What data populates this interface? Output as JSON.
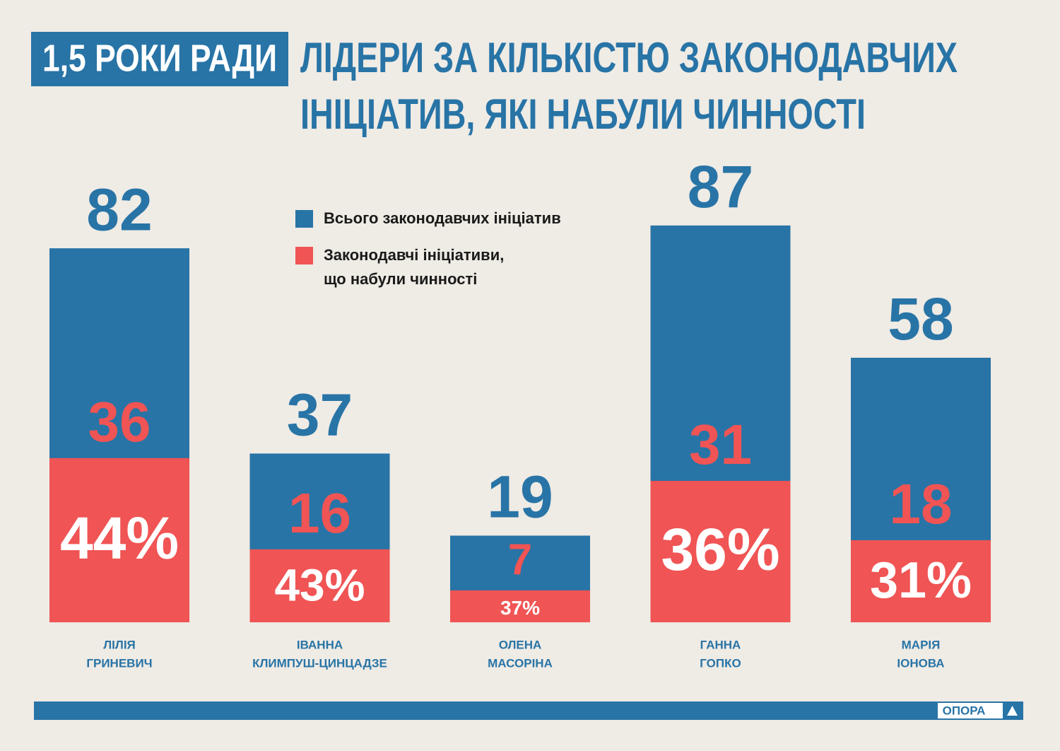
{
  "chart_data": {
    "type": "overlap_bar",
    "badge": "1,5 РОКИ РАДИ",
    "title": [
      "ЛІДЕРИ ЗА КІЛЬКІСТЮ ЗАКОНОДАВЧИХ",
      "ІНІЦІАТИВ, ЯКІ НАБУЛИ ЧИННОСТІ"
    ],
    "categories": [
      [
        "ЛІЛІЯ",
        "ГРИНЕВИЧ"
      ],
      [
        "ІВАННА",
        "КЛИМПУШ-ЦИНЦАДЗЕ"
      ],
      [
        "ОЛЕНА",
        "МАСОРІНА"
      ],
      [
        "ГАННА",
        "ГОПКО"
      ],
      [
        "МАРІЯ",
        "ІОНОВА"
      ]
    ],
    "series": [
      {
        "name": [
          "Всього законодавчих ініціатив"
        ],
        "color": "#2874a6",
        "values": [
          82,
          37,
          19,
          87,
          58
        ]
      },
      {
        "name": [
          "Законодавчі ініціативи,",
          "що набули чинності"
        ],
        "color": "#f05454",
        "values": [
          36,
          16,
          7,
          31,
          18
        ]
      }
    ],
    "share_labels": [
      "44%",
      "43%",
      "37%",
      "36%",
      "31%"
    ],
    "ylim": [
      0,
      100
    ]
  },
  "footer_logo": "ОПОРА"
}
